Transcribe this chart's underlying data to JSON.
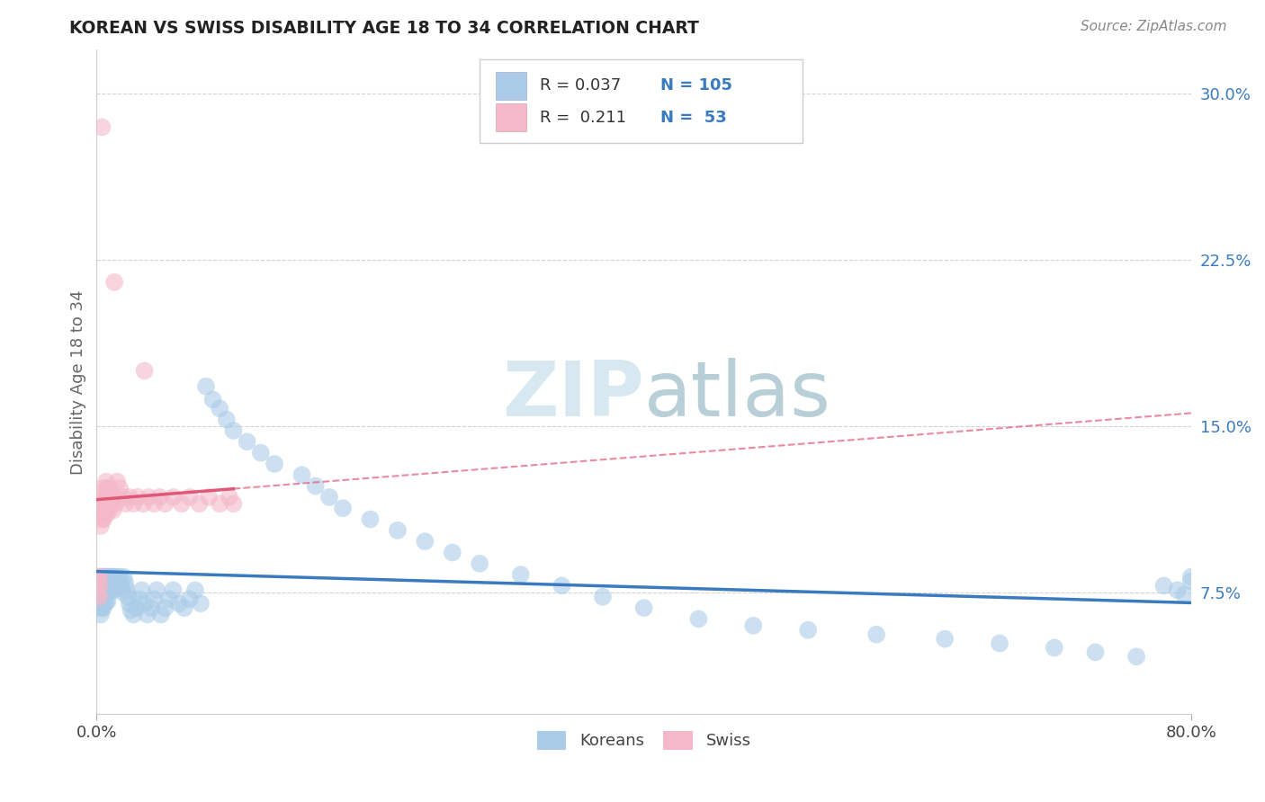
{
  "title": "KOREAN VS SWISS DISABILITY AGE 18 TO 34 CORRELATION CHART",
  "source_text": "Source: ZipAtlas.com",
  "ylabel": "Disability Age 18 to 34",
  "yticks": [
    0.075,
    0.15,
    0.225,
    0.3
  ],
  "ytick_labels": [
    "7.5%",
    "15.0%",
    "22.5%",
    "30.0%"
  ],
  "legend_labels": [
    "Koreans",
    "Swiss"
  ],
  "legend_r": [
    0.037,
    0.211
  ],
  "legend_n": [
    105,
    53
  ],
  "blue_color": "#aacce8",
  "pink_color": "#f4b8c8",
  "blue_line_color": "#3a7bbf",
  "pink_line_color": "#e05878",
  "blue_scatter": {
    "x": [
      0.001,
      0.001,
      0.001,
      0.001,
      0.002,
      0.002,
      0.002,
      0.002,
      0.002,
      0.003,
      0.003,
      0.003,
      0.003,
      0.003,
      0.004,
      0.004,
      0.004,
      0.004,
      0.005,
      0.005,
      0.005,
      0.005,
      0.006,
      0.006,
      0.006,
      0.007,
      0.007,
      0.007,
      0.008,
      0.008,
      0.008,
      0.009,
      0.009,
      0.01,
      0.01,
      0.011,
      0.011,
      0.012,
      0.012,
      0.013,
      0.014,
      0.015,
      0.016,
      0.017,
      0.018,
      0.019,
      0.02,
      0.021,
      0.022,
      0.023,
      0.024,
      0.025,
      0.027,
      0.029,
      0.031,
      0.033,
      0.035,
      0.037,
      0.04,
      0.042,
      0.044,
      0.047,
      0.05,
      0.053,
      0.056,
      0.06,
      0.064,
      0.068,
      0.072,
      0.076,
      0.08,
      0.085,
      0.09,
      0.095,
      0.1,
      0.11,
      0.12,
      0.13,
      0.15,
      0.16,
      0.17,
      0.18,
      0.2,
      0.22,
      0.24,
      0.26,
      0.28,
      0.31,
      0.34,
      0.37,
      0.4,
      0.44,
      0.48,
      0.52,
      0.57,
      0.62,
      0.66,
      0.7,
      0.73,
      0.76,
      0.78,
      0.79,
      0.795,
      0.8,
      0.8
    ],
    "y": [
      0.082,
      0.079,
      0.076,
      0.074,
      0.082,
      0.079,
      0.075,
      0.072,
      0.068,
      0.082,
      0.078,
      0.074,
      0.07,
      0.065,
      0.082,
      0.078,
      0.073,
      0.068,
      0.082,
      0.078,
      0.073,
      0.068,
      0.082,
      0.077,
      0.07,
      0.082,
      0.077,
      0.071,
      0.082,
      0.077,
      0.071,
      0.082,
      0.076,
      0.082,
      0.076,
      0.082,
      0.076,
      0.082,
      0.076,
      0.082,
      0.077,
      0.082,
      0.078,
      0.082,
      0.078,
      0.075,
      0.082,
      0.079,
      0.076,
      0.073,
      0.07,
      0.067,
      0.065,
      0.068,
      0.072,
      0.076,
      0.07,
      0.065,
      0.068,
      0.072,
      0.076,
      0.065,
      0.068,
      0.072,
      0.076,
      0.07,
      0.068,
      0.072,
      0.076,
      0.07,
      0.168,
      0.162,
      0.158,
      0.153,
      0.148,
      0.143,
      0.138,
      0.133,
      0.128,
      0.123,
      0.118,
      0.113,
      0.108,
      0.103,
      0.098,
      0.093,
      0.088,
      0.083,
      0.078,
      0.073,
      0.068,
      0.063,
      0.06,
      0.058,
      0.056,
      0.054,
      0.052,
      0.05,
      0.048,
      0.046,
      0.078,
      0.076,
      0.074,
      0.08,
      0.082
    ]
  },
  "pink_scatter": {
    "x": [
      0.001,
      0.001,
      0.001,
      0.002,
      0.002,
      0.002,
      0.003,
      0.003,
      0.003,
      0.004,
      0.004,
      0.004,
      0.005,
      0.005,
      0.005,
      0.006,
      0.006,
      0.007,
      0.007,
      0.007,
      0.008,
      0.008,
      0.009,
      0.009,
      0.01,
      0.01,
      0.011,
      0.012,
      0.013,
      0.014,
      0.015,
      0.017,
      0.019,
      0.021,
      0.024,
      0.027,
      0.03,
      0.034,
      0.038,
      0.042,
      0.046,
      0.05,
      0.056,
      0.062,
      0.068,
      0.075,
      0.082,
      0.09,
      0.097,
      0.1,
      0.004,
      0.013,
      0.035
    ],
    "y": [
      0.082,
      0.078,
      0.074,
      0.082,
      0.078,
      0.073,
      0.115,
      0.11,
      0.105,
      0.12,
      0.115,
      0.108,
      0.122,
      0.115,
      0.108,
      0.118,
      0.112,
      0.125,
      0.118,
      0.11,
      0.122,
      0.115,
      0.118,
      0.112,
      0.122,
      0.115,
      0.118,
      0.112,
      0.118,
      0.115,
      0.125,
      0.122,
      0.118,
      0.115,
      0.118,
      0.115,
      0.118,
      0.115,
      0.118,
      0.115,
      0.118,
      0.115,
      0.118,
      0.115,
      0.118,
      0.115,
      0.118,
      0.115,
      0.118,
      0.115,
      0.285,
      0.215,
      0.175
    ]
  },
  "xlim": [
    0.0,
    0.8
  ],
  "ylim": [
    0.02,
    0.32
  ],
  "background_color": "#ffffff",
  "grid_color": "#c8c8c8",
  "watermark_color": "#d8e8f0",
  "watermark_text": "ZIPatlas"
}
